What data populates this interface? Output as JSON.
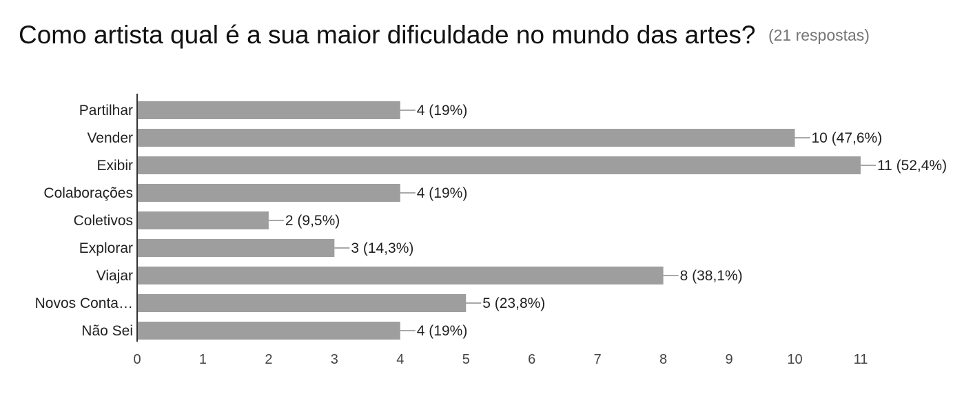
{
  "chart_data": {
    "type": "bar",
    "orientation": "horizontal",
    "title": "Como artista qual é a sua maior dificuldade no mundo das artes?",
    "subtitle": "(21 respostas)",
    "categories": [
      "Partilhar",
      "Vender",
      "Exibir",
      "Colaborações",
      "Coletivos",
      "Explorar",
      "Viajar",
      "Novos Conta…",
      "Não Sei"
    ],
    "values": [
      4,
      10,
      11,
      4,
      2,
      3,
      8,
      5,
      4
    ],
    "data_labels": [
      "4 (19%)",
      "10 (47,6%)",
      "11 (52,4%)",
      "4 (19%)",
      "2 (9,5%)",
      "3 (14,3%)",
      "8 (38,1%)",
      "5 (23,8%)",
      "4 (19%)"
    ],
    "x_ticks": [
      "0",
      "1",
      "2",
      "3",
      "4",
      "5",
      "6",
      "7",
      "8",
      "9",
      "10",
      "11"
    ],
    "xlim": [
      0,
      11
    ],
    "bar_color": "#9e9e9e",
    "axis_color": "#333333",
    "grid": false
  }
}
